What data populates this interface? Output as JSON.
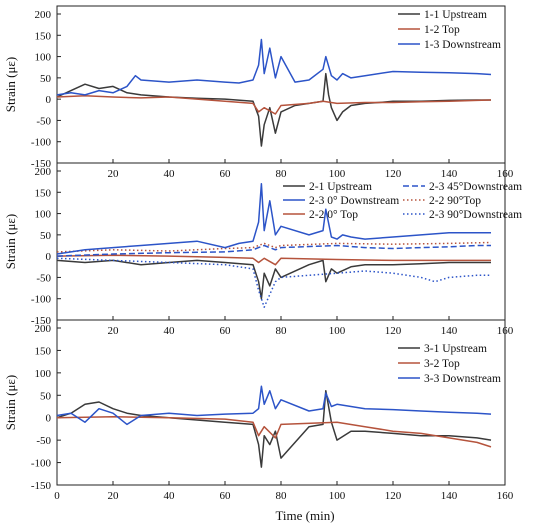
{
  "chart_data": [
    {
      "type": "line",
      "xlim": [
        0,
        160
      ],
      "ylim": [
        -150,
        200
      ],
      "yticks": [
        -150,
        -100,
        -50,
        0,
        50,
        100,
        150,
        200
      ],
      "xticks": [
        20,
        40,
        60,
        80,
        100,
        120,
        140,
        160
      ],
      "ylabel": "Strain (με)",
      "legend_position": "top-right",
      "series": [
        {
          "name": "1-1  Upstream",
          "color": "#3a3a3a",
          "dash": "solid",
          "x": [
            0,
            5,
            10,
            15,
            20,
            25,
            30,
            40,
            50,
            60,
            70,
            72,
            73,
            74,
            76,
            78,
            80,
            85,
            90,
            95,
            96,
            97,
            98,
            100,
            102,
            105,
            110,
            115,
            120,
            130,
            140,
            150,
            155
          ],
          "y": [
            5,
            20,
            35,
            25,
            30,
            15,
            10,
            5,
            2,
            0,
            -5,
            -40,
            -110,
            -60,
            -20,
            -80,
            -30,
            -15,
            -10,
            -5,
            60,
            10,
            -20,
            -50,
            -30,
            -15,
            -10,
            -8,
            -5,
            -5,
            -3,
            -2,
            -2
          ]
        },
        {
          "name": "1-2  Top",
          "color": "#b5533c",
          "dash": "solid",
          "x": [
            0,
            10,
            20,
            30,
            40,
            50,
            60,
            70,
            72,
            74,
            78,
            80,
            90,
            95,
            100,
            110,
            120,
            130,
            140,
            150,
            155
          ],
          "y": [
            5,
            8,
            5,
            3,
            5,
            0,
            -5,
            -10,
            -30,
            -20,
            -35,
            -15,
            -10,
            -5,
            -10,
            -8,
            -8,
            -6,
            -5,
            -3,
            -2
          ]
        },
        {
          "name": "1-3  Downstream",
          "color": "#2c54c8",
          "dash": "solid",
          "x": [
            0,
            5,
            10,
            15,
            20,
            25,
            28,
            30,
            40,
            50,
            60,
            65,
            70,
            72,
            73,
            74,
            76,
            78,
            80,
            85,
            90,
            95,
            96,
            98,
            100,
            102,
            105,
            110,
            120,
            130,
            140,
            150,
            155
          ],
          "y": [
            10,
            15,
            10,
            20,
            15,
            30,
            55,
            45,
            40,
            45,
            40,
            38,
            45,
            80,
            140,
            60,
            120,
            50,
            100,
            40,
            45,
            70,
            100,
            55,
            45,
            60,
            50,
            55,
            65,
            63,
            62,
            60,
            58
          ]
        }
      ]
    },
    {
      "type": "line",
      "xlim": [
        0,
        160
      ],
      "ylim": [
        -150,
        200
      ],
      "yticks": [
        -150,
        -100,
        -50,
        0,
        50,
        100,
        150,
        200
      ],
      "xticks": [
        20,
        40,
        60,
        80,
        100,
        120,
        140,
        160
      ],
      "ylabel": "Strain (με)",
      "legend_position": "top-right",
      "series": [
        {
          "name": "2-1 Upstream",
          "color": "#3a3a3a",
          "dash": "solid",
          "x": [
            0,
            10,
            20,
            30,
            40,
            50,
            60,
            70,
            72,
            73,
            74,
            76,
            78,
            80,
            90,
            95,
            96,
            98,
            100,
            105,
            110,
            120,
            130,
            140,
            150,
            155
          ],
          "y": [
            -10,
            -15,
            -10,
            -20,
            -15,
            -10,
            -15,
            -20,
            -60,
            -100,
            -40,
            -70,
            -30,
            -50,
            -20,
            -10,
            -60,
            -30,
            -40,
            -25,
            -20,
            -20,
            -18,
            -15,
            -15,
            -15
          ]
        },
        {
          "name": "2-2 0°  Top",
          "color": "#b5533c",
          "dash": "solid",
          "x": [
            0,
            20,
            40,
            60,
            70,
            72,
            74,
            78,
            80,
            100,
            120,
            140,
            155
          ],
          "y": [
            0,
            2,
            0,
            -3,
            -5,
            -15,
            -5,
            -20,
            -5,
            -8,
            -10,
            -10,
            -10
          ]
        },
        {
          "name": "2-2 90°Top",
          "color": "#b5533c",
          "dash": "dot",
          "x": [
            0,
            20,
            40,
            60,
            70,
            72,
            74,
            78,
            80,
            100,
            120,
            140,
            155
          ],
          "y": [
            10,
            15,
            12,
            18,
            20,
            25,
            30,
            20,
            25,
            30,
            28,
            30,
            32
          ]
        },
        {
          "name": "2-3 0° Downstream",
          "color": "#2c54c8",
          "dash": "solid",
          "x": [
            0,
            10,
            20,
            30,
            40,
            50,
            60,
            65,
            70,
            72,
            73,
            74,
            76,
            78,
            80,
            90,
            95,
            96,
            98,
            100,
            102,
            105,
            110,
            120,
            130,
            140,
            150,
            155
          ],
          "y": [
            5,
            15,
            20,
            25,
            30,
            35,
            20,
            30,
            35,
            80,
            170,
            60,
            130,
            50,
            70,
            50,
            60,
            110,
            45,
            40,
            50,
            45,
            40,
            45,
            50,
            55,
            55,
            55
          ]
        },
        {
          "name": "2-3 45°Downstream",
          "color": "#2c54c8",
          "dash": "dash",
          "x": [
            0,
            20,
            40,
            60,
            70,
            72,
            74,
            78,
            80,
            100,
            110,
            120,
            130,
            140,
            150,
            155
          ],
          "y": [
            0,
            5,
            8,
            10,
            15,
            20,
            25,
            15,
            20,
            25,
            20,
            18,
            20,
            22,
            25,
            25
          ]
        },
        {
          "name": "2-3 90°Downstream",
          "color": "#2c54c8",
          "dash": "dot",
          "x": [
            0,
            20,
            40,
            60,
            70,
            72,
            74,
            78,
            80,
            100,
            110,
            120,
            130,
            135,
            140,
            150,
            155
          ],
          "y": [
            -5,
            -10,
            -15,
            -20,
            -30,
            -80,
            -120,
            -60,
            -50,
            -40,
            -35,
            -40,
            -50,
            -60,
            -50,
            -45,
            -45
          ]
        }
      ]
    },
    {
      "type": "line",
      "xlim": [
        0,
        160
      ],
      "ylim": [
        -150,
        200
      ],
      "yticks": [
        -150,
        -100,
        -50,
        0,
        50,
        100,
        150,
        200
      ],
      "xticks": [
        0,
        20,
        40,
        60,
        80,
        100,
        120,
        140,
        160
      ],
      "xlabel": "Time (min)",
      "ylabel": "Strain (με)",
      "legend_position": "center-right",
      "series": [
        {
          "name": "3-1 Upstream",
          "color": "#3a3a3a",
          "dash": "solid",
          "x": [
            0,
            5,
            10,
            15,
            20,
            25,
            30,
            40,
            50,
            60,
            70,
            72,
            73,
            74,
            76,
            78,
            80,
            90,
            95,
            96,
            98,
            100,
            105,
            110,
            120,
            130,
            140,
            150,
            155
          ],
          "y": [
            0,
            10,
            30,
            35,
            20,
            10,
            5,
            0,
            -5,
            -10,
            -15,
            -60,
            -110,
            -40,
            -60,
            -30,
            -90,
            -20,
            -15,
            60,
            -10,
            -50,
            -30,
            -30,
            -35,
            -40,
            -40,
            -45,
            -50
          ]
        },
        {
          "name": "3-2 Top",
          "color": "#b5533c",
          "dash": "solid",
          "x": [
            0,
            20,
            40,
            60,
            70,
            72,
            74,
            78,
            80,
            100,
            110,
            120,
            130,
            140,
            150,
            155
          ],
          "y": [
            0,
            2,
            0,
            -3,
            -10,
            -40,
            -20,
            -45,
            -15,
            -10,
            -20,
            -30,
            -35,
            -45,
            -55,
            -65
          ]
        },
        {
          "name": "3-3 Downstream",
          "color": "#2c54c8",
          "dash": "solid",
          "x": [
            0,
            5,
            10,
            15,
            20,
            25,
            30,
            40,
            50,
            60,
            70,
            72,
            73,
            74,
            76,
            78,
            80,
            90,
            95,
            96,
            98,
            100,
            105,
            110,
            120,
            130,
            140,
            150,
            155
          ],
          "y": [
            5,
            10,
            -10,
            20,
            10,
            -15,
            5,
            10,
            5,
            8,
            10,
            20,
            70,
            30,
            60,
            20,
            40,
            15,
            20,
            55,
            25,
            30,
            25,
            20,
            18,
            15,
            12,
            10,
            8
          ]
        }
      ]
    }
  ]
}
